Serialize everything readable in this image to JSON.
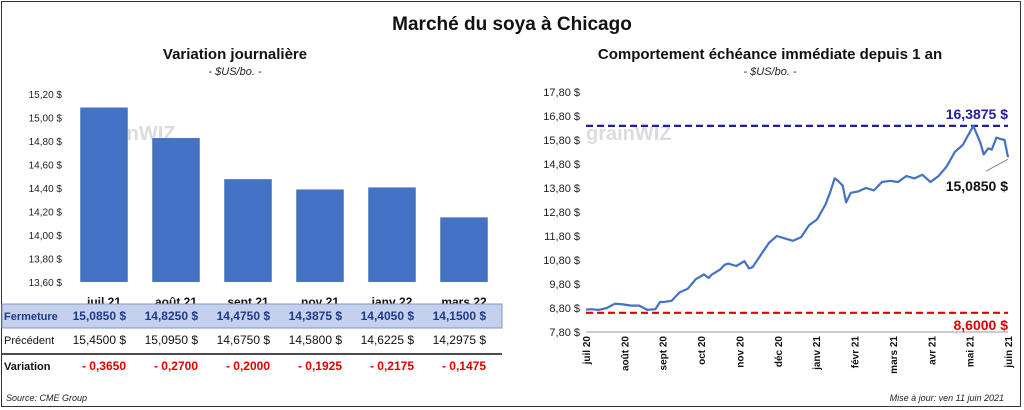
{
  "header": {
    "title": "Marché du soya à Chicago"
  },
  "footer": {
    "source": "Source: CME Group",
    "updated": "Mise à jour: ven 11 juin 2021"
  },
  "watermark": "grainWIZ",
  "left_chart": {
    "title": "Variation  journalière",
    "subtitle": "- $US/bo. -",
    "bar_color": "#4472C4",
    "y_ticks": [
      "15,20 $",
      "15,00 $",
      "14,80 $",
      "14,60 $",
      "14,40 $",
      "14,20 $",
      "14,00 $",
      "13,80 $",
      "13,60 $"
    ]
  },
  "chart_data": [
    {
      "type": "bar",
      "categories": [
        "juil 21",
        "août 21",
        "sept 21",
        "nov 21",
        "janv 22",
        "mars 22"
      ],
      "values": [
        15.085,
        14.825,
        14.475,
        14.3875,
        14.405,
        14.15
      ],
      "ylim": [
        13.6,
        15.2
      ],
      "title": "Variation  journalière",
      "ylabel": "- $US/bo. -",
      "grid": false
    },
    {
      "type": "line",
      "title": "Comportement  échéance immédiate depuis 1 an",
      "ylabel": "- $US/bo. -",
      "ylim": [
        7.8,
        17.8
      ],
      "x_labels": [
        "juil 20",
        "août 20",
        "sept 20",
        "oct 20",
        "nov 20",
        "déc 20",
        "janv 21",
        "févr 21",
        "mars 21",
        "avr 21",
        "mai 21",
        "juin 21"
      ],
      "x_range": [
        "2020-06-11",
        "2021-06-11"
      ],
      "series": [
        {
          "color": "#4472C4",
          "points": [
            [
              "2020-06-11",
              8.73
            ],
            [
              "2020-06-15",
              8.75
            ],
            [
              "2020-06-22",
              8.72
            ],
            [
              "2020-06-29",
              8.8
            ],
            [
              "2020-07-06",
              8.98
            ],
            [
              "2020-07-13",
              8.95
            ],
            [
              "2020-07-20",
              8.9
            ],
            [
              "2020-07-27",
              8.9
            ],
            [
              "2020-08-03",
              8.72
            ],
            [
              "2020-08-10",
              8.75
            ],
            [
              "2020-08-14",
              9.05
            ],
            [
              "2020-08-17",
              9.05
            ],
            [
              "2020-08-24",
              9.1
            ],
            [
              "2020-08-31",
              9.45
            ],
            [
              "2020-09-07",
              9.6
            ],
            [
              "2020-09-14",
              10.0
            ],
            [
              "2020-09-21",
              10.2
            ],
            [
              "2020-09-25",
              10.05
            ],
            [
              "2020-09-28",
              10.2
            ],
            [
              "2020-10-05",
              10.4
            ],
            [
              "2020-10-09",
              10.6
            ],
            [
              "2020-10-12",
              10.65
            ],
            [
              "2020-10-19",
              10.55
            ],
            [
              "2020-10-26",
              10.75
            ],
            [
              "2020-10-30",
              10.45
            ],
            [
              "2020-11-02",
              10.5
            ],
            [
              "2020-11-09",
              11.0
            ],
            [
              "2020-11-16",
              11.5
            ],
            [
              "2020-11-23",
              11.8
            ],
            [
              "2020-11-30",
              11.7
            ],
            [
              "2020-12-07",
              11.6
            ],
            [
              "2020-12-14",
              11.75
            ],
            [
              "2020-12-21",
              12.25
            ],
            [
              "2020-12-28",
              12.5
            ],
            [
              "2021-01-04",
              13.1
            ],
            [
              "2021-01-08",
              13.6
            ],
            [
              "2021-01-12",
              14.2
            ],
            [
              "2021-01-15",
              14.1
            ],
            [
              "2021-01-19",
              13.9
            ],
            [
              "2021-01-22",
              13.2
            ],
            [
              "2021-01-26",
              13.6
            ],
            [
              "2021-02-01",
              13.65
            ],
            [
              "2021-02-08",
              13.8
            ],
            [
              "2021-02-15",
              13.7
            ],
            [
              "2021-02-22",
              14.05
            ],
            [
              "2021-03-01",
              14.1
            ],
            [
              "2021-03-08",
              14.05
            ],
            [
              "2021-03-15",
              14.3
            ],
            [
              "2021-03-22",
              14.2
            ],
            [
              "2021-03-29",
              14.35
            ],
            [
              "2021-04-05",
              14.05
            ],
            [
              "2021-04-12",
              14.3
            ],
            [
              "2021-04-19",
              14.7
            ],
            [
              "2021-04-26",
              15.3
            ],
            [
              "2021-05-03",
              15.6
            ],
            [
              "2021-05-07",
              15.95
            ],
            [
              "2021-05-12",
              16.3875
            ],
            [
              "2021-05-18",
              15.7
            ],
            [
              "2021-05-21",
              15.2
            ],
            [
              "2021-05-25",
              15.45
            ],
            [
              "2021-05-28",
              15.4
            ],
            [
              "2021-06-01",
              15.9
            ],
            [
              "2021-06-04",
              15.85
            ],
            [
              "2021-06-08",
              15.8
            ],
            [
              "2021-06-11",
              15.085
            ]
          ]
        }
      ],
      "reference_lines": [
        {
          "value": 16.3875,
          "label": "16,3875  $",
          "color": "#1F1F9F"
        },
        {
          "value": 8.6,
          "label": "8,6000  $",
          "color": "#E00000"
        }
      ],
      "last_value_label": "15,0850 $"
    }
  ],
  "right_chart": {
    "title": "Comportement  échéance immédiate depuis 1 an",
    "subtitle": "- $US/bo. -",
    "y_ticks": [
      "17,80 $",
      "16,80 $",
      "15,80 $",
      "14,80 $",
      "13,80 $",
      "12,80 $",
      "11,80 $",
      "10,80 $",
      "9,80 $",
      "8,80 $",
      "7,80 $"
    ]
  },
  "table": {
    "rows": [
      {
        "label": "Fermeture",
        "values": [
          "15,0850",
          "14,8250",
          "14,4750",
          "14,3875",
          "14,4050",
          "14,1500"
        ],
        "unit": "$",
        "bg": "#C5D1EC",
        "color": "#1F3A8A"
      },
      {
        "label": "Précédent",
        "values": [
          "15,4500",
          "15,0950",
          "14,6750",
          "14,5800",
          "14,6225",
          "14,2975"
        ],
        "unit": "$",
        "color": "#111111"
      },
      {
        "label": "Variation",
        "values": [
          "- 0,3650",
          "- 0,2700",
          "- 0,2000",
          "- 0,1925",
          "- 0,2175",
          "- 0,1475"
        ],
        "unit": "",
        "color": "#E00000"
      }
    ]
  }
}
